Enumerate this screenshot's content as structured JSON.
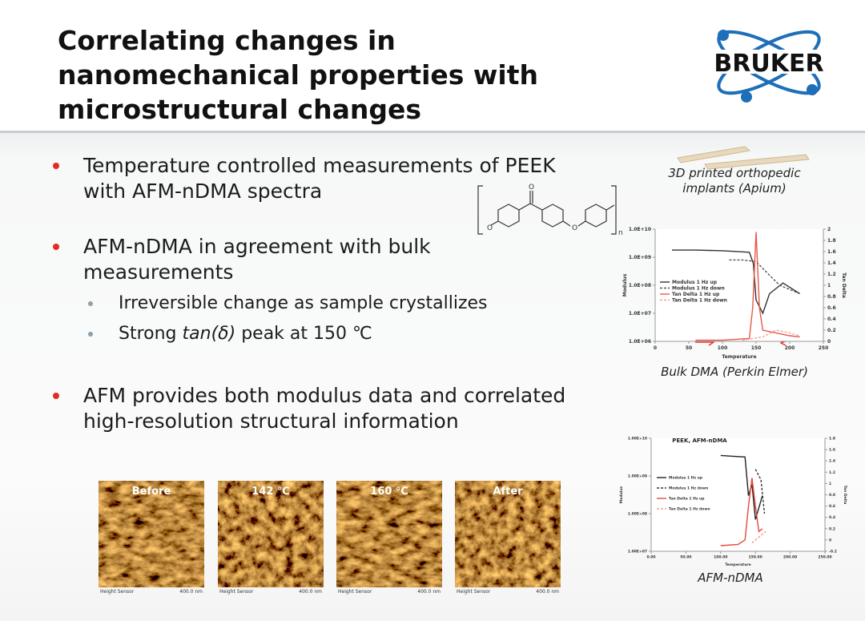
{
  "header": {
    "title_lines": [
      "Correlating changes in",
      "nanomechanical properties with",
      "microstructural changes"
    ],
    "logo": "BRUKER"
  },
  "bullets": [
    {
      "lines": [
        "Temperature controlled measurements of PEEK",
        "with AFM-nDMA spectra"
      ]
    },
    {
      "lines": [
        "AFM-nDMA in agreement with bulk",
        "measurements"
      ],
      "sub": [
        {
          "parts": [
            "Irreversible change as sample crystallizes"
          ]
        },
        {
          "parts": [
            "Strong ",
            "tan(δ)",
            " peak at 150 ℃"
          ]
        }
      ]
    },
    {
      "lines": [
        "AFM provides both modulus data and correlated",
        "high-resolution structural information"
      ]
    }
  ],
  "molecule": {
    "labels": [
      "O",
      "O",
      "O",
      "n"
    ]
  },
  "figures": {
    "implant_caption": [
      "3D printed orthopedic",
      "implants (Apium)"
    ],
    "bulk_caption": "Bulk DMA (Perkin Elmer)",
    "afm_caption": "AFM-nDMA",
    "micrographs": [
      {
        "label": "Before",
        "sensor": "Height Sensor",
        "scale": "400.0 nm"
      },
      {
        "label": "142 ℃",
        "sensor": "Height Sensor",
        "scale": "400.0 nm"
      },
      {
        "label": "160 ℃",
        "sensor": "Height Sensor",
        "scale": "400.0 nm"
      },
      {
        "label": "After",
        "sensor": "Height Sensor",
        "scale": "400.0 nm"
      }
    ]
  },
  "chart_data": [
    {
      "type": "line",
      "x_label": "Temperature",
      "y_label": "Modulus",
      "y2_label": "Tan Delta",
      "y_log": true,
      "xlim": [
        0,
        250
      ],
      "xticks": [
        0,
        50,
        100,
        150,
        200,
        250
      ],
      "ylim": [
        1000000,
        10000000000
      ],
      "yticks": [
        {
          "value": 1000000,
          "label": "1.0E+06"
        },
        {
          "value": 10000000,
          "label": "1.0E+07"
        },
        {
          "value": 100000000,
          "label": "1.0E+08"
        },
        {
          "value": 1000000000,
          "label": "1.0E+09"
        },
        {
          "value": 10000000000,
          "label": "1.0E+10"
        }
      ],
      "y2lim": [
        0,
        2
      ],
      "y2ticks": [
        0,
        0.2,
        0.4,
        0.6,
        0.8,
        1,
        1.2,
        1.4,
        1.6,
        1.8,
        2
      ],
      "series": [
        {
          "name": "Modulus 1 Hz up",
          "color": "#333333",
          "style": "solid",
          "x": [
            25,
            60,
            100,
            140,
            146,
            150,
            160,
            170,
            190,
            215
          ],
          "values": [
            1800000000,
            1800000000,
            1700000000,
            1500000000,
            600000000,
            30000000,
            10000000,
            50000000,
            120000000,
            50000000
          ]
        },
        {
          "name": "Modulus 1 Hz down",
          "color": "#555555",
          "style": "dashed",
          "x": [
            110,
            130,
            150,
            165,
            185,
            215
          ],
          "values": [
            800000000,
            800000000,
            700000000,
            300000000,
            100000000,
            50000000
          ]
        },
        {
          "name": "Tan Delta 1 Hz up",
          "color": "#e8574a",
          "style": "solid",
          "axis": "y2",
          "x": [
            60,
            100,
            140,
            145,
            150,
            155,
            160,
            200,
            215
          ],
          "values": [
            0.02,
            0.02,
            0.05,
            0.6,
            1.95,
            0.6,
            0.2,
            0.1,
            0.08
          ]
        },
        {
          "name": "Tan Delta 1 Hz down",
          "color": "#f4a29a",
          "style": "dashed",
          "axis": "y2",
          "x": [
            130,
            160,
            180,
            200,
            215
          ],
          "values": [
            0.02,
            0.08,
            0.2,
            0.15,
            0.1
          ]
        }
      ]
    },
    {
      "type": "line",
      "title": "PEEK, AFM-nDMA",
      "x_label": "Temperature",
      "y_label": "Modulus",
      "y2_label": "Tan Delta",
      "y_log": true,
      "xlim": [
        0,
        250
      ],
      "xticks": [
        {
          "value": 0,
          "label": "0.00"
        },
        {
          "value": 50,
          "label": "50.00"
        },
        {
          "value": 100,
          "label": "100.00"
        },
        {
          "value": 150,
          "label": "150.00"
        },
        {
          "value": 200,
          "label": "200.00"
        },
        {
          "value": 250,
          "label": "250.00"
        }
      ],
      "ylim": [
        10000000,
        10000000000
      ],
      "yticks": [
        {
          "value": 10000000,
          "label": "1.00E+07"
        },
        {
          "value": 100000000,
          "label": "1.00E+08"
        },
        {
          "value": 1000000000,
          "label": "1.00E+09"
        },
        {
          "value": 10000000000,
          "label": "1.00E+10"
        }
      ],
      "y2lim": [
        -0.2,
        1.8
      ],
      "y2ticks": [
        -0.2,
        0,
        0.2,
        0.4,
        0.6,
        0.8,
        1,
        1.2,
        1.4,
        1.6,
        1.8
      ],
      "series": [
        {
          "name": "Modulus 1 Hz up",
          "color": "#222222",
          "style": "solid",
          "x": [
            100,
            120,
            135,
            140,
            145,
            150,
            160
          ],
          "values": [
            3500000000,
            3300000000,
            3200000000,
            300000000,
            600000000,
            70000000,
            300000000
          ]
        },
        {
          "name": "Modulus 1 Hz down",
          "color": "#333333",
          "style": "dashed",
          "x": [
            150,
            158,
            163
          ],
          "values": [
            1500000000,
            800000000,
            100000000
          ]
        },
        {
          "name": "Tan Delta 1 Hz up",
          "color": "#e8473a",
          "style": "solid",
          "axis": "y2",
          "x": [
            100,
            125,
            135,
            140,
            145,
            150,
            155,
            160
          ],
          "values": [
            -0.1,
            -0.08,
            0,
            0.6,
            1.1,
            0.6,
            0.15,
            0.2
          ]
        },
        {
          "name": "Tan Delta 1 Hz down",
          "color": "#f29a90",
          "style": "dashed",
          "axis": "y2",
          "x": [
            145,
            165
          ],
          "values": [
            -0.05,
            0.15
          ]
        }
      ]
    }
  ]
}
